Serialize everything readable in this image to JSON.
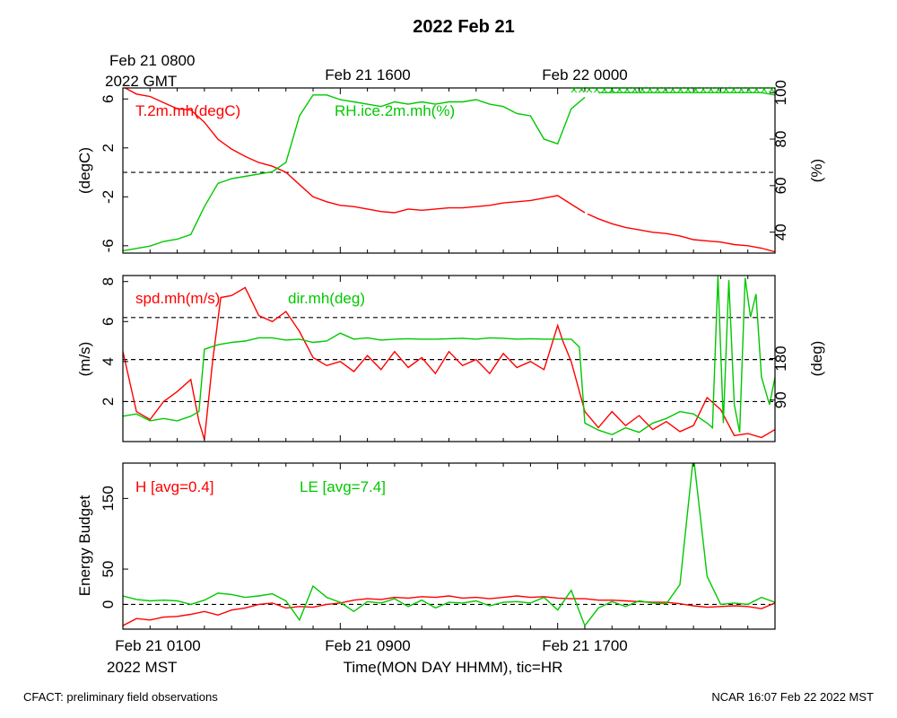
{
  "title": "2022 Feb 21",
  "gmt_labels": {
    "start_line1": "Feb 21 0800",
    "start_line2": "2022 GMT",
    "tick1": "Feb 21 1600",
    "tick2": "Feb 22 0000"
  },
  "mst_labels": {
    "start_line1": "Feb 21 0100",
    "start_line2": "2022 MST",
    "tick1": "Feb 21 0900",
    "tick2": "Feb 21 1700"
  },
  "xlabel": "Time(MON DAY HHMM), tic=HR",
  "footer_left": "CFACT: preliminary field observations",
  "footer_right": "NCAR 16:07 Feb 22 2022 MST",
  "colors": {
    "red": "#ff0000",
    "green": "#00c800",
    "axis": "#000000"
  },
  "chart_data": [
    {
      "type": "line",
      "panel": "top",
      "x_unit": "hours since Feb 21 0100 MST",
      "xlim": [
        0,
        24
      ],
      "left_axis": {
        "label": "(degC)",
        "ticks": [
          "6",
          "2",
          "-2",
          "-6"
        ],
        "tick_values": [
          6,
          2,
          -2,
          -6
        ],
        "ylim": [
          -6.6,
          6.9
        ]
      },
      "right_axis": {
        "label": "(%)",
        "ticks": [
          "100",
          "80",
          "60",
          "40"
        ],
        "tick_values": [
          100,
          80,
          60,
          40
        ],
        "ylim": [
          31,
          102
        ]
      },
      "reference_lines": [
        {
          "axis": "left",
          "value": 0
        }
      ],
      "series": [
        {
          "name": "T.2m.mh(degC)",
          "axis": "left",
          "color": "#ff0000",
          "x": [
            0,
            0.5,
            1,
            1.5,
            2,
            2.5,
            3,
            3.5,
            4,
            4.5,
            5,
            5.5,
            6,
            6.5,
            7,
            7.5,
            8,
            8.5,
            9,
            9.5,
            10,
            10.5,
            11,
            11.5,
            12,
            12.5,
            13,
            13.5,
            14,
            14.5,
            15,
            15.5,
            16,
            16.5,
            17
          ],
          "y": [
            7.0,
            6.4,
            6.2,
            5.7,
            5.2,
            5.1,
            4.1,
            2.7,
            1.9,
            1.3,
            0.8,
            0.5,
            0.0,
            -1.0,
            -2.0,
            -2.4,
            -2.7,
            -2.8,
            -3.0,
            -3.2,
            -3.3,
            -3.0,
            -3.1,
            -3.0,
            -2.9,
            -2.9,
            -2.8,
            -2.7,
            -2.5,
            -2.4,
            -2.3,
            -2.1,
            -1.9,
            -2.6,
            -3.3
          ]
        },
        {
          "name": "",
          "axis": "left",
          "color": "#ff0000",
          "x": [
            17.1,
            17.5,
            18,
            18.5,
            19,
            19.5,
            20,
            20.5,
            21,
            21.5,
            22,
            22.5,
            23,
            23.5,
            24
          ],
          "y": [
            -3.4,
            -3.8,
            -4.2,
            -4.5,
            -4.7,
            -4.9,
            -5.0,
            -5.2,
            -5.5,
            -5.6,
            -5.7,
            -5.9,
            -6.0,
            -6.2,
            -6.5
          ]
        },
        {
          "name": "RH.ice.2m.mh(%)",
          "axis": "right",
          "color": "#00c800",
          "x": [
            0,
            0.5,
            1,
            1.5,
            2,
            2.5,
            3,
            3.5,
            4,
            4.5,
            5,
            5.5,
            6,
            6.5,
            7,
            7.5,
            8,
            8.5,
            9,
            9.5,
            10,
            10.5,
            11,
            11.5,
            12,
            12.5,
            13,
            13.5,
            14,
            14.5,
            15,
            15.5,
            16,
            16.5,
            17
          ],
          "y": [
            32,
            33,
            34,
            36,
            37,
            39,
            51,
            61,
            63,
            64,
            65,
            66,
            70,
            90,
            99,
            99,
            97,
            96,
            95,
            94,
            96,
            95,
            96,
            95,
            96,
            96,
            97,
            95,
            94,
            91,
            90,
            80,
            78,
            93,
            98
          ]
        },
        {
          "name": "",
          "axis": "right",
          "color": "#00c800",
          "x": [
            17.5,
            18,
            18.5,
            19,
            19.5,
            20,
            20.5,
            21,
            21.5,
            22,
            22.5,
            23,
            23.5,
            24
          ],
          "y": [
            100,
            100,
            100,
            100,
            100,
            100,
            100,
            100,
            100,
            100,
            100,
            100,
            100,
            99
          ]
        }
      ]
    },
    {
      "type": "line",
      "panel": "middle",
      "x_unit": "hours since Feb 21 0100 MST",
      "xlim": [
        0,
        24
      ],
      "left_axis": {
        "label": "(m/s)",
        "ticks": [
          "8",
          "6",
          "4",
          "2"
        ],
        "tick_values": [
          8,
          6,
          4,
          2
        ],
        "ylim": [
          0,
          8.3
        ]
      },
      "right_axis": {
        "label": "(deg)",
        "ticks": [
          "180",
          "90"
        ],
        "tick_values": [
          180,
          90
        ],
        "ylim": [
          0,
          360
        ]
      },
      "reference_lines": [
        {
          "axis": "left",
          "value": 6.2
        },
        {
          "axis": "left",
          "value": 4.1
        },
        {
          "axis": "left",
          "value": 2.0
        }
      ],
      "series": [
        {
          "name": "spd.mh(m/s)",
          "axis": "left",
          "color": "#ff0000",
          "x": [
            0,
            0.5,
            1,
            1.5,
            2,
            2.5,
            2.8,
            3,
            3.3,
            3.6,
            4,
            4.5,
            5,
            5.5,
            6,
            6.5,
            7,
            7.5,
            8,
            8.5,
            9,
            9.5,
            10,
            10.5,
            11,
            11.5,
            12,
            12.5,
            13,
            13.5,
            14,
            14.5,
            15,
            15.5,
            16,
            16.2,
            16.5,
            17,
            17.5,
            18,
            18.5,
            19,
            19.5,
            20,
            20.5,
            21,
            21.5,
            22,
            22.5,
            23,
            23.5,
            24
          ],
          "y": [
            4.5,
            1.5,
            1.1,
            2.0,
            2.5,
            3.1,
            1.0,
            0.1,
            4.0,
            7.2,
            7.3,
            7.7,
            6.3,
            6.0,
            6.5,
            5.5,
            4.2,
            3.8,
            4.0,
            3.5,
            4.3,
            3.6,
            4.5,
            3.7,
            4.2,
            3.4,
            4.5,
            3.8,
            4.1,
            3.4,
            4.4,
            3.7,
            4.0,
            3.6,
            5.8,
            5.0,
            4.0,
            1.5,
            0.7,
            1.5,
            0.8,
            1.3,
            0.6,
            1.0,
            0.5,
            0.8,
            2.2,
            1.6,
            0.3,
            0.4,
            0.2,
            0.6
          ]
        },
        {
          "name": "dir.mh(deg)",
          "axis": "right",
          "color": "#00c800",
          "x": [
            0,
            0.5,
            1,
            1.5,
            2,
            2.5,
            2.8,
            3,
            3.5,
            4,
            4.5,
            5,
            5.5,
            6,
            6.5,
            7,
            7.5,
            8,
            8.5,
            9,
            9.5,
            10,
            10.5,
            11,
            11.5,
            12,
            12.5,
            13,
            13.5,
            14,
            14.5,
            15,
            15.5,
            16,
            16.5,
            16.8,
            17,
            17.5,
            18,
            18.5,
            19,
            19.5,
            20,
            20.5,
            21,
            21.5,
            21.7,
            21.9,
            22.1,
            22.3,
            22.5,
            22.7,
            22.9,
            23.1,
            23.3,
            23.5,
            23.8,
            24
          ],
          "y": [
            55,
            60,
            45,
            50,
            45,
            55,
            65,
            200,
            210,
            215,
            218,
            225,
            225,
            220,
            222,
            215,
            218,
            235,
            222,
            225,
            220,
            222,
            223,
            222,
            222,
            223,
            224,
            222,
            225,
            224,
            222,
            223,
            222,
            222,
            222,
            205,
            40,
            25,
            15,
            30,
            20,
            40,
            50,
            65,
            60,
            40,
            30,
            360,
            40,
            350,
            80,
            20,
            355,
            270,
            320,
            140,
            80,
            140
          ]
        }
      ]
    },
    {
      "type": "line",
      "panel": "bottom",
      "ylabel": "Energy Budget",
      "x_unit": "hours since Feb 21 0100 MST",
      "xlim": [
        0,
        24
      ],
      "left_axis": {
        "ticks": [
          "150",
          "50",
          "0"
        ],
        "tick_values": [
          150,
          50,
          0
        ],
        "ylim": [
          -35,
          200
        ]
      },
      "reference_lines": [
        {
          "axis": "left",
          "value": 0
        }
      ],
      "series": [
        {
          "name": "H [avg=0.4]",
          "axis": "left",
          "color": "#ff0000",
          "x": [
            0,
            0.5,
            1,
            1.5,
            2,
            2.5,
            3,
            3.5,
            4,
            4.5,
            5,
            5.5,
            6,
            6.5,
            7,
            7.5,
            8,
            8.5,
            9,
            9.5,
            10,
            10.5,
            11,
            11.5,
            12,
            12.5,
            13,
            13.5,
            14,
            14.5,
            15,
            15.5,
            16,
            16.5,
            17,
            17.5,
            18,
            18.5,
            19,
            19.5,
            20,
            20.5,
            21,
            21.5,
            22,
            22.5,
            23,
            23.5,
            24
          ],
          "y": [
            -30,
            -20,
            -22,
            -18,
            -17,
            -14,
            -10,
            -15,
            -8,
            -5,
            0,
            2,
            -5,
            -3,
            -4,
            0,
            2,
            6,
            8,
            7,
            10,
            9,
            11,
            10,
            12,
            9,
            10,
            8,
            10,
            12,
            10,
            11,
            9,
            8,
            8,
            6,
            6,
            5,
            4,
            3,
            3,
            1,
            -2,
            -4,
            -3,
            -2,
            -3,
            -6,
            2
          ]
        },
        {
          "name": "LE [avg=7.4]",
          "axis": "left",
          "color": "#00c800",
          "x": [
            0,
            0.5,
            1,
            1.5,
            2,
            2.5,
            3,
            3.5,
            4,
            4.5,
            5,
            5.5,
            6,
            6.5,
            7,
            7.5,
            8,
            8.5,
            9,
            9.5,
            10,
            10.5,
            11,
            11.5,
            12,
            12.5,
            13,
            13.5,
            14,
            14.5,
            15,
            15.5,
            16,
            16.5,
            17,
            17.5,
            18,
            18.5,
            19,
            19.5,
            20,
            20.5,
            21,
            21.5,
            22,
            22.5,
            23,
            23.5,
            24
          ],
          "y": [
            12,
            7,
            5,
            6,
            5,
            0,
            6,
            16,
            14,
            10,
            12,
            15,
            5,
            -22,
            26,
            10,
            3,
            -10,
            4,
            2,
            8,
            -3,
            6,
            -5,
            3,
            2,
            5,
            -2,
            3,
            4,
            2,
            10,
            -8,
            20,
            -30,
            -5,
            4,
            -3,
            5,
            2,
            1,
            28,
            210,
            40,
            0,
            2,
            0,
            10,
            3
          ]
        }
      ]
    }
  ]
}
